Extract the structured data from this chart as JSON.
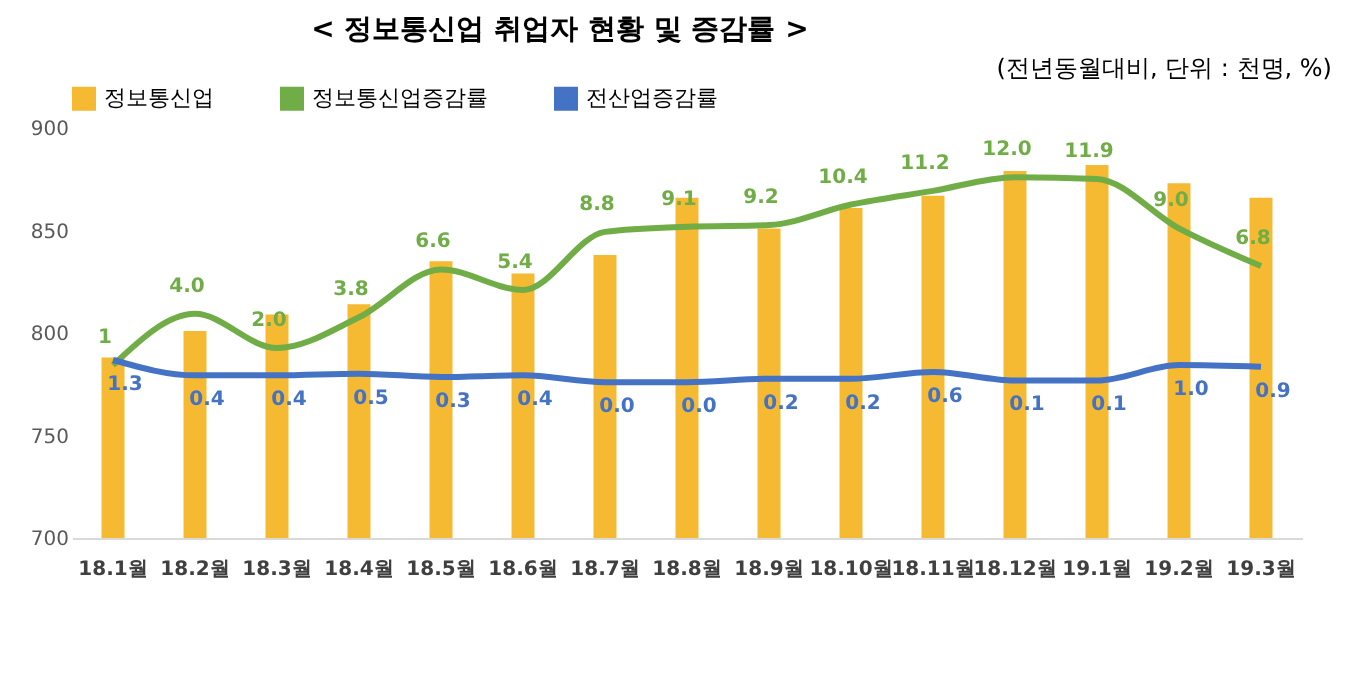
{
  "chart_data": {
    "type": "bar",
    "title": "< 정보통신업 취업자 현황 및 증감률 >",
    "subtitle": "(전년동월대비, 단위 : 천명, %)",
    "categories": [
      "18.1월",
      "18.2월",
      "18.3월",
      "18.4월",
      "18.5월",
      "18.6월",
      "18.7월",
      "18.8월",
      "18.9월",
      "18.10월",
      "18.11월",
      "18.12월",
      "19.1월",
      "19.2월",
      "19.3월"
    ],
    "series": [
      {
        "name": "정보통신업",
        "type": "bar",
        "color": "#f5b932",
        "values": [
          788,
          801,
          809,
          814,
          835,
          829,
          838,
          866,
          851,
          861,
          867,
          879,
          882,
          873,
          866
        ]
      },
      {
        "name": "정보통신업증감률",
        "type": "line",
        "axis": "y2",
        "color": "#70ad47",
        "values": [
          1,
          4.0,
          2.0,
          3.8,
          6.6,
          5.4,
          8.8,
          9.1,
          9.2,
          10.4,
          11.2,
          12.0,
          11.9,
          9.0,
          6.8
        ],
        "value_labels": [
          "1",
          "4.0",
          "2.0",
          "3.8",
          "6.6",
          "5.4",
          "8.8",
          "9.1",
          "9.2",
          "10.4",
          "11.2",
          "12.0",
          "11.9",
          "9.0",
          "6.8"
        ]
      },
      {
        "name": "전산업증감률",
        "type": "line",
        "axis": "y2",
        "color": "#4472c4",
        "values": [
          1.3,
          0.4,
          0.4,
          0.5,
          0.3,
          0.4,
          0.0,
          0.0,
          0.2,
          0.2,
          0.6,
          0.1,
          0.1,
          1.0,
          0.9
        ],
        "value_labels": [
          "1.3",
          "0.4",
          "0.4",
          "0.5",
          "0.3",
          "0.4",
          "0.0",
          "0.0",
          "0.2",
          "0.2",
          "0.6",
          "0.1",
          "0.1",
          "1.0",
          "0.9"
        ]
      }
    ],
    "ylim": [
      700,
      900
    ],
    "yticks": [
      700,
      750,
      800,
      850,
      900
    ],
    "tick_labels": "xy",
    "legend": "top",
    "grid": false,
    "marker": "none",
    "line_style": "solid"
  }
}
